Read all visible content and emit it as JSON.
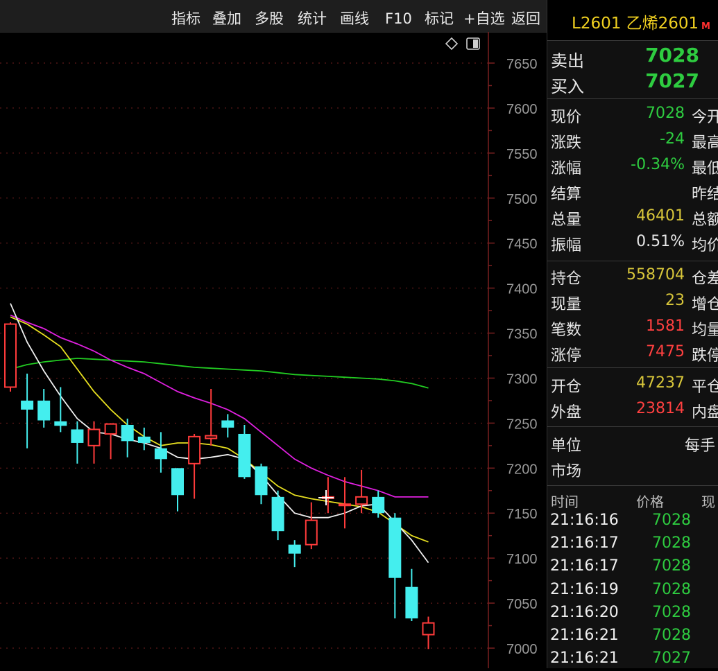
{
  "toolbar": {
    "items": [
      "指标",
      "叠加",
      "多股",
      "统计",
      "画线",
      "F10",
      "标记",
      "+自选",
      "返回"
    ]
  },
  "chart_data": {
    "type": "candlestick",
    "ylim": [
      6975,
      7690
    ],
    "yticks": [
      7650,
      7600,
      7550,
      7500,
      7450,
      7400,
      7350,
      7300,
      7250,
      7200,
      7150,
      7100,
      7050,
      7000
    ],
    "candles": [
      {
        "o": 7290,
        "h": 7362,
        "l": 7285,
        "c": 7360
      },
      {
        "o": 7275,
        "h": 7305,
        "l": 7222,
        "c": 7265
      },
      {
        "o": 7275,
        "h": 7288,
        "l": 7245,
        "c": 7253
      },
      {
        "o": 7252,
        "h": 7290,
        "l": 7240,
        "c": 7247
      },
      {
        "o": 7243,
        "h": 7252,
        "l": 7205,
        "c": 7228
      },
      {
        "o": 7225,
        "h": 7252,
        "l": 7205,
        "c": 7243
      },
      {
        "o": 7238,
        "h": 7250,
        "l": 7210,
        "c": 7249
      },
      {
        "o": 7248,
        "h": 7255,
        "l": 7212,
        "c": 7230
      },
      {
        "o": 7235,
        "h": 7245,
        "l": 7220,
        "c": 7228
      },
      {
        "o": 7222,
        "h": 7240,
        "l": 7195,
        "c": 7210
      },
      {
        "o": 7200,
        "h": 7200,
        "l": 7152,
        "c": 7170
      },
      {
        "o": 7205,
        "h": 7238,
        "l": 7166,
        "c": 7235
      },
      {
        "o": 7233,
        "h": 7288,
        "l": 7225,
        "c": 7236
      },
      {
        "o": 7253,
        "h": 7260,
        "l": 7234,
        "c": 7245
      },
      {
        "o": 7238,
        "h": 7248,
        "l": 7188,
        "c": 7190
      },
      {
        "o": 7202,
        "h": 7205,
        "l": 7160,
        "c": 7170
      },
      {
        "o": 7168,
        "h": 7175,
        "l": 7120,
        "c": 7130
      },
      {
        "o": 7115,
        "h": 7120,
        "l": 7090,
        "c": 7105
      },
      {
        "o": 7115,
        "h": 7162,
        "l": 7110,
        "c": 7142
      },
      {
        "o": 7168,
        "h": 7190,
        "l": 7150,
        "c": 7168
      },
      {
        "o": 7160,
        "h": 7190,
        "l": 7133,
        "c": 7160
      },
      {
        "o": 7160,
        "h": 7198,
        "l": 7150,
        "c": 7168
      },
      {
        "o": 7168,
        "h": 7175,
        "l": 7145,
        "c": 7150
      },
      {
        "o": 7145,
        "h": 7150,
        "l": 7033,
        "c": 7078
      },
      {
        "o": 7068,
        "h": 7088,
        "l": 7030,
        "c": 7033
      },
      {
        "o": 7015,
        "h": 7035,
        "l": 6999,
        "c": 7028
      }
    ],
    "ma_white": [
      7383,
      7340,
      7308,
      7280,
      7255,
      7240,
      7238,
      7232,
      7228,
      7222,
      7212,
      7210,
      7212,
      7215,
      7210,
      7192,
      7170,
      7150,
      7145,
      7145,
      7150,
      7158,
      7160,
      7140,
      7120,
      7095
    ],
    "ma_yellow": [
      7368,
      7360,
      7348,
      7335,
      7310,
      7285,
      7265,
      7248,
      7235,
      7225,
      7228,
      7228,
      7226,
      7222,
      7210,
      7195,
      7180,
      7170,
      7166,
      7163,
      7160,
      7157,
      7151,
      7138,
      7125,
      7118
    ],
    "ma_magenta": [
      7370,
      7362,
      7355,
      7345,
      7338,
      7330,
      7320,
      7312,
      7305,
      7295,
      7285,
      7278,
      7272,
      7265,
      7255,
      7240,
      7225,
      7210,
      7200,
      7192,
      7185,
      7180,
      7175,
      7168,
      7168,
      7168
    ],
    "ma_green": [
      7310,
      7315,
      7318,
      7320,
      7322,
      7321,
      7320,
      7319,
      7318,
      7316,
      7314,
      7312,
      7311,
      7310,
      7309,
      7308,
      7306,
      7304,
      7303,
      7302,
      7301,
      7300,
      7299,
      7297,
      7294,
      7289
    ]
  },
  "panel": {
    "title": "L2601 乙烯2601",
    "badge": "M",
    "sell_label": "卖出",
    "sell_price": "7028",
    "buy_label": "买入",
    "buy_price": "7027",
    "rows1": [
      {
        "label": "现价",
        "value": "7028",
        "color": "#2ecc40",
        "right": "今开"
      },
      {
        "label": "涨跌",
        "value": "-24",
        "color": "#2ecc40",
        "right": "最高"
      },
      {
        "label": "涨幅",
        "value": "-0.34%",
        "color": "#2ecc40",
        "right": "最低"
      },
      {
        "label": "结算",
        "value": "",
        "color": "#e6e6e6",
        "right": "昨结"
      },
      {
        "label": "总量",
        "value": "46401",
        "color": "#d8c63a",
        "right": "总额"
      },
      {
        "label": "振幅",
        "value": "0.51%",
        "color": "#e6e6e6",
        "right": "均价"
      }
    ],
    "rows2": [
      {
        "label": "持仓",
        "value": "558704",
        "color": "#d8c63a",
        "right": "仓差"
      },
      {
        "label": "现量",
        "value": "23",
        "color": "#d8c63a",
        "right": "增仓"
      },
      {
        "label": "笔数",
        "value": "1581",
        "color": "#ff4040",
        "right": "均量"
      },
      {
        "label": "涨停",
        "value": "7475",
        "color": "#ff4040",
        "right": "跌停"
      }
    ],
    "rows3": [
      {
        "label": "开仓",
        "value": "47237",
        "color": "#d8c63a",
        "right": "平仓"
      },
      {
        "label": "外盘",
        "value": "23814",
        "color": "#ff4040",
        "right": "内盘"
      }
    ],
    "unit_label": "单位",
    "unit_value": "每手",
    "market_label": "市场",
    "ticks_header": {
      "time": "时间",
      "price": "价格",
      "vol": "现"
    },
    "ticks": [
      {
        "time": "21:16:16",
        "price": "7028"
      },
      {
        "time": "21:16:17",
        "price": "7028"
      },
      {
        "time": "21:16:17",
        "price": "7028"
      },
      {
        "time": "21:16:19",
        "price": "7028"
      },
      {
        "time": "21:16:20",
        "price": "7028"
      },
      {
        "time": "21:16:21",
        "price": "7028"
      },
      {
        "time": "21:16:21",
        "price": "7027"
      }
    ]
  },
  "colors": {
    "up": "#ff3b3b",
    "down": "#44eeee",
    "ma_white": "#f0f0f0",
    "ma_yellow": "#e8e020",
    "ma_magenta": "#e020e0",
    "ma_green": "#22cc22",
    "grid": "#7a2020",
    "axis_text": "#9a9a9a"
  },
  "icons": [
    "diamond-icon",
    "sidebar-toggle-icon",
    "cursor-cross-icon"
  ]
}
